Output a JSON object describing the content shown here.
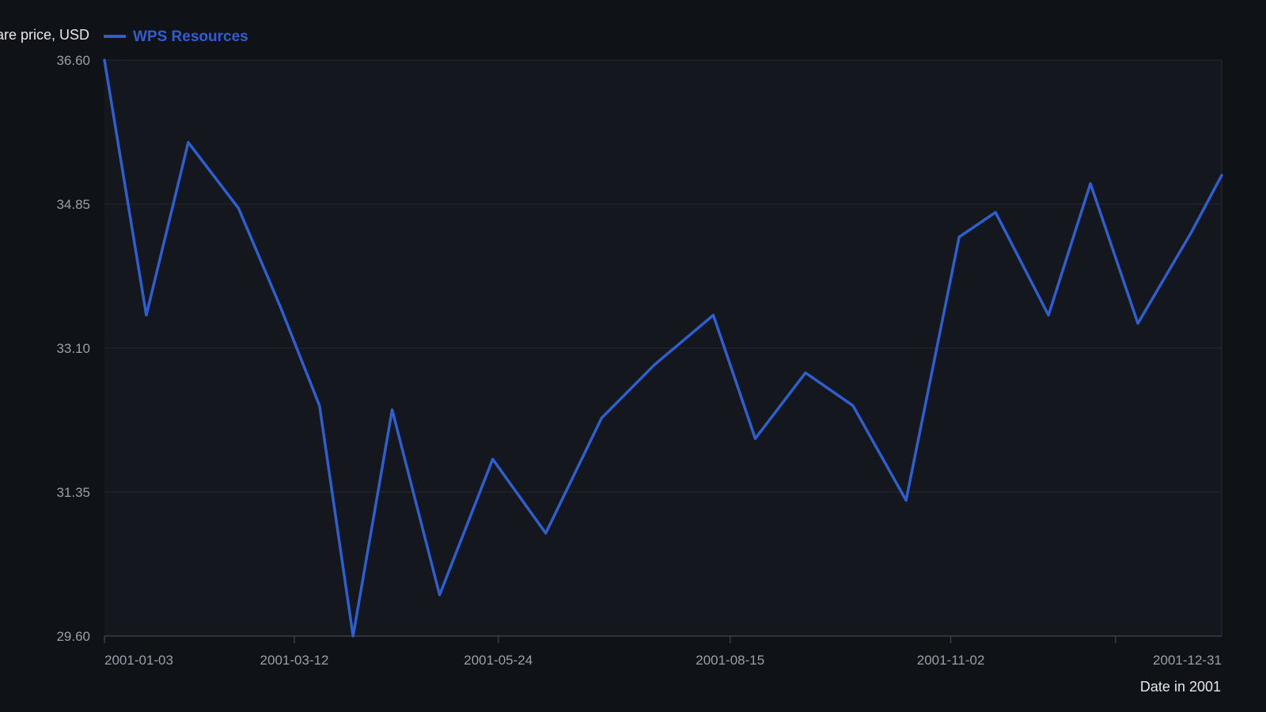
{
  "chart_data": {
    "type": "line",
    "ylabel": "Share price, USD",
    "xlabel": "Date in 2001",
    "ylim": [
      29.6,
      36.6
    ],
    "y_ticks": [
      "36.60",
      "34.85",
      "33.10",
      "31.35",
      "29.60"
    ],
    "x_ticks": [
      "2001-01-03",
      "2001-03-12",
      "2001-05-24",
      "2001-08-15",
      "2001-11-02",
      "2001-12-31"
    ],
    "grid": true,
    "legend_position": "top-left",
    "series": [
      {
        "name": "WPS Resources",
        "color": "#2f5fcf",
        "points": [
          {
            "x": "2001-01-03",
            "y": 36.6
          },
          {
            "x": "2001-01-18",
            "y": 33.5
          },
          {
            "x": "2001-02-02",
            "y": 35.6
          },
          {
            "x": "2001-02-20",
            "y": 34.8
          },
          {
            "x": "2001-03-07",
            "y": 33.6
          },
          {
            "x": "2001-03-21",
            "y": 32.4
          },
          {
            "x": "2001-04-02",
            "y": 29.6
          },
          {
            "x": "2001-04-16",
            "y": 32.35
          },
          {
            "x": "2001-05-03",
            "y": 30.1
          },
          {
            "x": "2001-05-22",
            "y": 31.75
          },
          {
            "x": "2001-06-10",
            "y": 30.85
          },
          {
            "x": "2001-06-30",
            "y": 32.25
          },
          {
            "x": "2001-07-19",
            "y": 32.9
          },
          {
            "x": "2001-08-09",
            "y": 33.5
          },
          {
            "x": "2001-08-24",
            "y": 32.0
          },
          {
            "x": "2001-09-11",
            "y": 32.8
          },
          {
            "x": "2001-09-28",
            "y": 32.4
          },
          {
            "x": "2001-10-17",
            "y": 31.25
          },
          {
            "x": "2001-11-05",
            "y": 34.45
          },
          {
            "x": "2001-11-18",
            "y": 34.75
          },
          {
            "x": "2001-12-07",
            "y": 33.5
          },
          {
            "x": "2001-12-22",
            "y": 35.1
          },
          {
            "x": "2002-01-08",
            "y": 33.4
          },
          {
            "x": "2002-01-27",
            "y": 34.5
          },
          {
            "x": "2002-02-07",
            "y": 35.2
          }
        ]
      }
    ]
  }
}
